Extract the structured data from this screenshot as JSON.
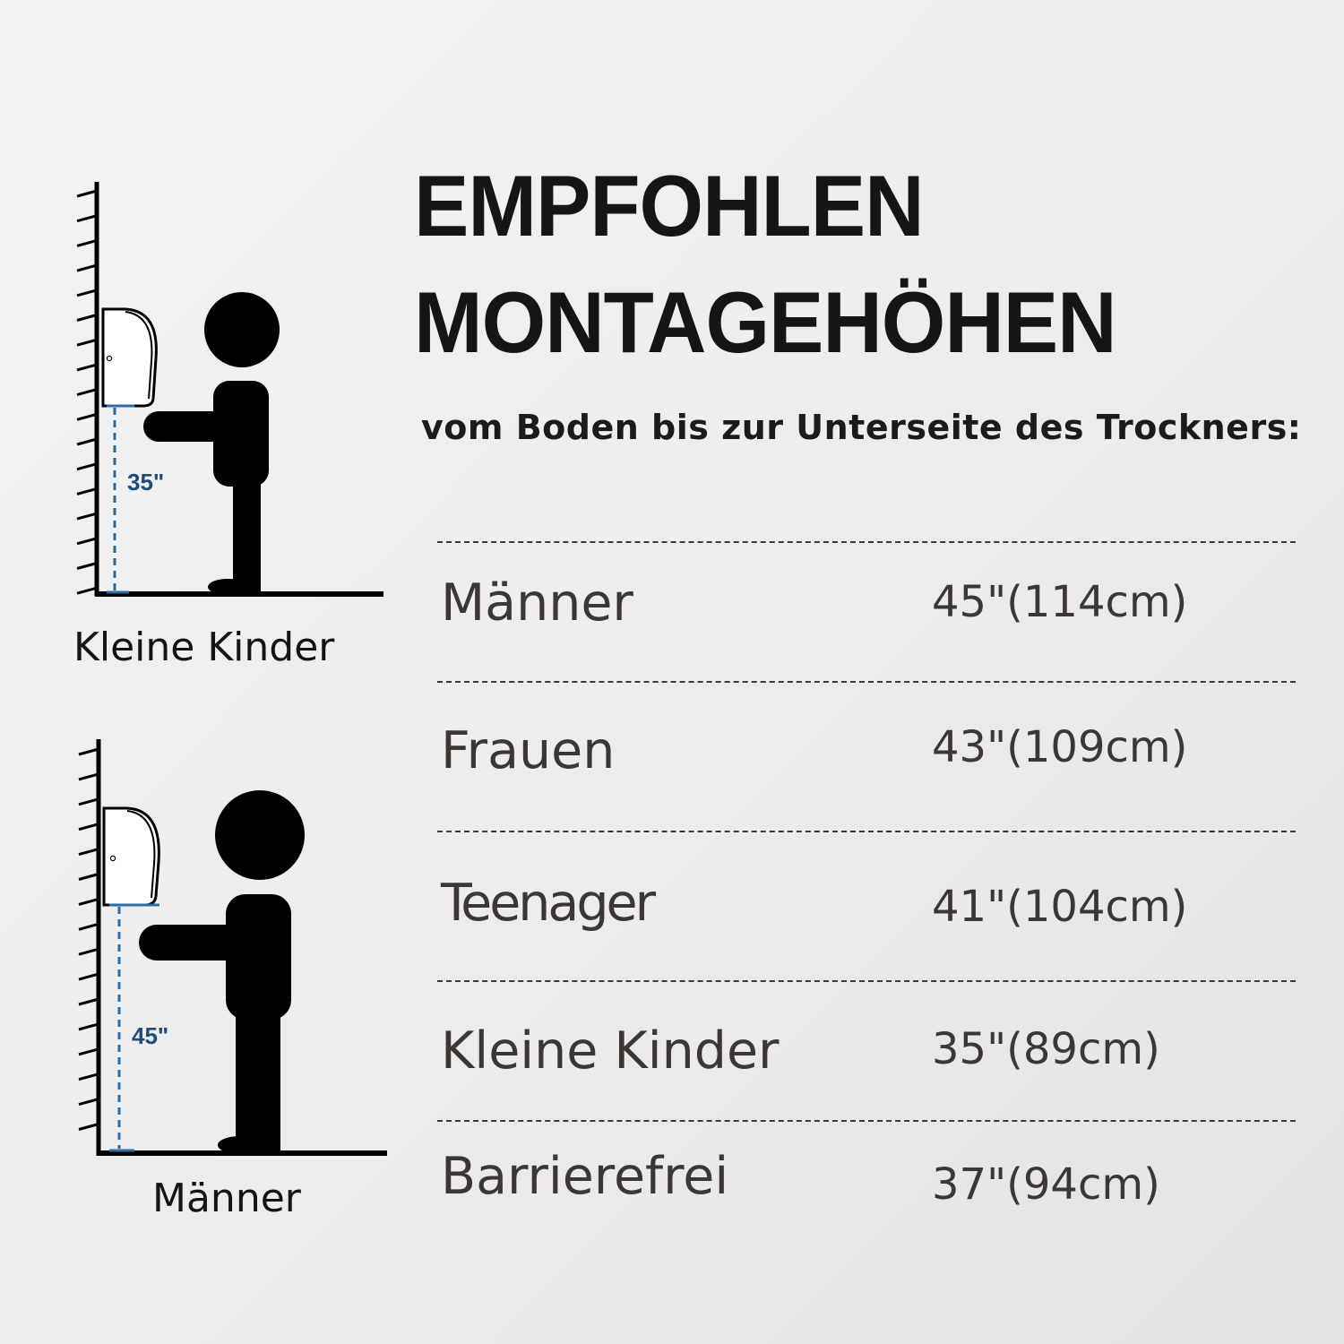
{
  "title": {
    "line1": "EMPFOHLEN",
    "line2": "MONTAGEHÖHEN"
  },
  "subtitle": "vom Boden bis zur Unterseite des Trockners:",
  "rows": [
    {
      "label": "Männer",
      "value": "45\"(114cm)"
    },
    {
      "label": "Frauen",
      "value": "43\"(109cm)"
    },
    {
      "label": "Teenager",
      "value": "41\"(104cm)"
    },
    {
      "label": "Kleine Kinder",
      "value": "35\"(89cm)"
    },
    {
      "label": "Barrierefrei",
      "value": "37\"(94cm)"
    }
  ],
  "figures": [
    {
      "caption": "Kleine Kinder",
      "height_label": "35\""
    },
    {
      "caption": "Männer",
      "height_label": "45\""
    }
  ],
  "colors": {
    "dimension": "#2e6da4",
    "text": "#3b3735",
    "figure": "#000000"
  },
  "icons": [
    "hand-dryer-icon",
    "person-icon",
    "wall-scale-icon"
  ]
}
